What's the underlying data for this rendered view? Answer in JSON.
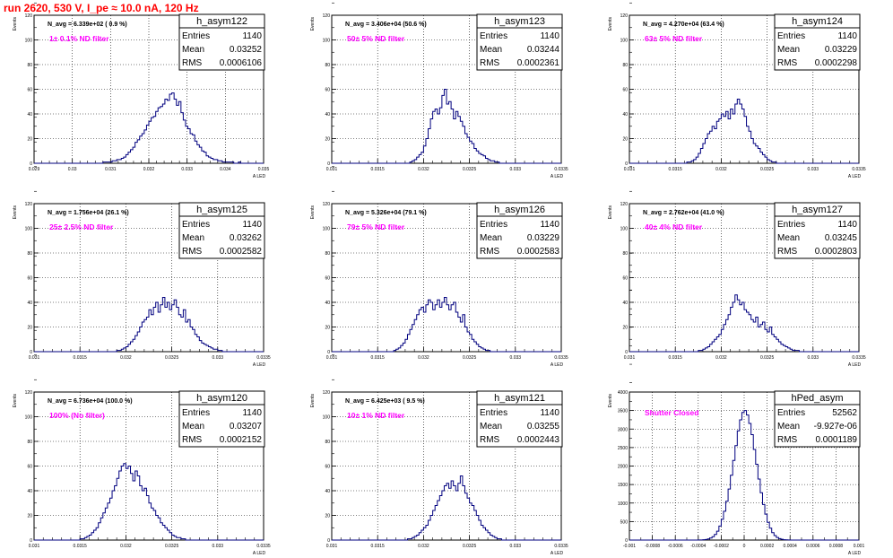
{
  "page_title": "run 2620,   530 V, I_pe ≈ 10.0 nA, 120 Hz",
  "style": {
    "hist_color": "#00007f",
    "annotation_color": "#ff00ff",
    "title_color": "#ff0000"
  },
  "chart_data": [
    {
      "type": "histogram",
      "name": "h_asym122",
      "title": "h_asym122",
      "stats": {
        "Entries": "1140",
        "Mean": "0.03252",
        "RMS": "0.0006106"
      },
      "navg_label": "N_avg = 6.339e+02 ( 0.9 %)",
      "filter_label": "1± 0.1% ND filter",
      "ylabel": "Events",
      "xlabel": "A_LED",
      "xlim": [
        0.029,
        0.035
      ],
      "ylim": [
        0,
        120
      ],
      "xticks": [
        "0.029",
        "0.03",
        "0.031",
        "0.032",
        "0.033",
        "0.034",
        "0.035"
      ],
      "yticks": [
        "0",
        "20",
        "40",
        "60",
        "80",
        "100",
        "120"
      ],
      "counts": [
        0,
        0,
        0,
        0,
        0,
        0,
        0,
        0,
        0,
        0,
        0,
        0,
        0,
        0,
        0,
        0,
        0,
        0,
        0,
        0,
        0,
        0,
        0,
        0,
        0,
        0,
        0,
        0,
        0,
        0,
        1,
        1,
        1,
        1,
        2,
        2,
        3,
        3,
        4,
        5,
        7,
        9,
        11,
        13,
        17,
        19,
        22,
        24,
        27,
        31,
        34,
        37,
        38,
        42,
        45,
        46,
        48,
        52,
        51,
        56,
        57,
        52,
        47,
        50,
        41,
        35,
        30,
        28,
        24,
        23,
        18,
        15,
        13,
        10,
        9,
        6,
        5,
        4,
        3,
        3,
        2,
        2,
        1,
        1,
        1,
        1,
        1,
        0,
        0,
        1,
        0,
        0,
        0,
        0,
        0,
        0,
        0,
        0,
        0,
        0
      ]
    },
    {
      "type": "histogram",
      "name": "h_asym123",
      "title": "h_asym123",
      "stats": {
        "Entries": "1140",
        "Mean": "0.03244",
        "RMS": "0.0002361"
      },
      "navg_label": "N_avg = 3.406e+04 (50.6 %)",
      "filter_label": "50± 5% ND filter",
      "ylabel": "Events",
      "xlabel": "A_LED",
      "xlim": [
        0.031,
        0.0335
      ],
      "ylim": [
        0,
        120
      ],
      "xticks": [
        "0.031",
        "0.0315",
        "0.032",
        "0.0325",
        "0.033",
        "0.0335"
      ],
      "yticks": [
        "0",
        "20",
        "40",
        "60",
        "80",
        "100",
        "120"
      ],
      "counts": [
        0,
        0,
        0,
        0,
        0,
        0,
        0,
        0,
        0,
        0,
        0,
        0,
        0,
        0,
        0,
        0,
        0,
        0,
        0,
        0,
        0,
        0,
        0,
        0,
        0,
        0,
        0,
        0,
        0,
        0,
        0,
        0,
        0,
        0,
        1,
        2,
        3,
        5,
        7,
        9,
        14,
        20,
        28,
        36,
        42,
        44,
        40,
        45,
        55,
        60,
        48,
        50,
        44,
        36,
        42,
        38,
        34,
        30,
        24,
        21,
        18,
        16,
        12,
        10,
        8,
        7,
        6,
        4,
        3,
        2,
        2,
        1,
        1,
        0,
        0,
        0,
        0,
        0,
        0,
        0,
        0,
        0,
        0,
        0,
        0,
        0,
        0,
        0,
        0,
        0,
        0,
        0,
        0,
        0,
        0,
        0,
        0,
        0,
        0,
        0
      ]
    },
    {
      "type": "histogram",
      "name": "h_asym124",
      "title": "h_asym124",
      "stats": {
        "Entries": "1140",
        "Mean": "0.03229",
        "RMS": "0.0002298"
      },
      "navg_label": "N_avg = 4.270e+04 (63.4 %)",
      "filter_label": "63± 5% ND filter",
      "ylabel": "Events",
      "xlabel": "A_LED",
      "xlim": [
        0.031,
        0.0335
      ],
      "ylim": [
        0,
        120
      ],
      "xticks": [
        "0.031",
        "0.0315",
        "0.032",
        "0.0325",
        "0.033",
        "0.0335"
      ],
      "yticks": [
        "0",
        "20",
        "40",
        "60",
        "80",
        "100",
        "120"
      ],
      "counts": [
        0,
        0,
        0,
        0,
        0,
        0,
        0,
        0,
        0,
        0,
        0,
        0,
        0,
        0,
        0,
        0,
        0,
        0,
        0,
        0,
        0,
        0,
        0,
        0,
        0,
        1,
        1,
        2,
        3,
        5,
        8,
        12,
        16,
        20,
        24,
        26,
        30,
        28,
        34,
        36,
        40,
        38,
        42,
        36,
        44,
        40,
        48,
        52,
        48,
        44,
        38,
        30,
        26,
        20,
        16,
        14,
        12,
        9,
        7,
        5,
        3,
        2,
        1,
        1,
        0,
        0,
        0,
        0,
        0,
        0,
        0,
        0,
        0,
        0,
        0,
        0,
        0,
        0,
        0,
        0,
        0,
        0,
        0,
        0,
        0,
        0,
        0,
        0,
        0,
        0,
        0,
        0,
        0,
        0,
        0,
        0,
        0,
        0,
        0,
        0
      ]
    },
    {
      "type": "histogram",
      "name": "h_asym125",
      "title": "h_asym125",
      "stats": {
        "Entries": "1140",
        "Mean": "0.03262",
        "RMS": "0.0002582"
      },
      "navg_label": "N_avg = 1.756e+04 (26.1 %)",
      "filter_label": "25± 2.5% ND filter",
      "ylabel": "Events",
      "xlabel": "A_LED",
      "xlim": [
        0.031,
        0.0335
      ],
      "ylim": [
        0,
        120
      ],
      "xticks": [
        "0.031",
        "0.0315",
        "0.032",
        "0.0325",
        "0.033",
        "0.0335"
      ],
      "yticks": [
        "0",
        "20",
        "40",
        "60",
        "80",
        "100",
        "120"
      ],
      "counts": [
        0,
        0,
        0,
        0,
        0,
        0,
        0,
        0,
        0,
        0,
        0,
        0,
        0,
        0,
        0,
        0,
        0,
        0,
        0,
        0,
        0,
        0,
        0,
        0,
        0,
        0,
        0,
        0,
        0,
        0,
        0,
        0,
        0,
        0,
        0,
        0,
        1,
        1,
        2,
        3,
        4,
        6,
        8,
        10,
        13,
        16,
        20,
        24,
        26,
        28,
        34,
        30,
        36,
        40,
        32,
        38,
        44,
        36,
        40,
        34,
        38,
        42,
        36,
        30,
        28,
        34,
        24,
        26,
        20,
        18,
        14,
        12,
        9,
        7,
        6,
        5,
        4,
        3,
        2,
        2,
        1,
        1,
        0,
        0,
        0,
        0,
        0,
        0,
        0,
        0,
        0,
        0,
        0,
        0,
        0,
        0,
        0,
        0,
        0,
        0
      ]
    },
    {
      "type": "histogram",
      "name": "h_asym126",
      "title": "h_asym126",
      "stats": {
        "Entries": "1140",
        "Mean": "0.03229",
        "RMS": "0.0002583"
      },
      "navg_label": "N_avg = 5.326e+04 (79.1 %)",
      "filter_label": "79± 5% ND filter",
      "ylabel": "Events",
      "xlabel": "A_LED",
      "xlim": [
        0.031,
        0.0335
      ],
      "ylim": [
        0,
        120
      ],
      "xticks": [
        "0.031",
        "0.0315",
        "0.032",
        "0.0325",
        "0.033",
        "0.0335"
      ],
      "yticks": [
        "0",
        "20",
        "40",
        "60",
        "80",
        "100",
        "120"
      ],
      "counts": [
        0,
        0,
        0,
        0,
        0,
        0,
        0,
        0,
        0,
        0,
        0,
        0,
        0,
        0,
        0,
        0,
        0,
        0,
        0,
        0,
        0,
        0,
        0,
        0,
        0,
        0,
        0,
        1,
        2,
        3,
        5,
        7,
        10,
        14,
        18,
        22,
        26,
        30,
        34,
        36,
        32,
        38,
        42,
        40,
        34,
        38,
        42,
        36,
        40,
        44,
        38,
        34,
        38,
        40,
        32,
        28,
        24,
        30,
        20,
        16,
        14,
        10,
        8,
        6,
        4,
        3,
        2,
        1,
        1,
        0,
        0,
        0,
        0,
        0,
        0,
        0,
        0,
        0,
        0,
        0,
        0,
        0,
        0,
        0,
        0,
        0,
        0,
        0,
        0,
        0,
        0,
        0,
        0,
        0,
        0,
        0,
        0,
        0,
        0,
        0
      ]
    },
    {
      "type": "histogram",
      "name": "h_asym127",
      "title": "h_asym127",
      "stats": {
        "Entries": "1140",
        "Mean": "0.03245",
        "RMS": "0.0002803"
      },
      "navg_label": "N_avg = 2.762e+04 (41.0 %)",
      "filter_label": "40± 4% ND filter",
      "ylabel": "Events",
      "xlabel": "A_LED",
      "xlim": [
        0.031,
        0.0335
      ],
      "ylim": [
        0,
        120
      ],
      "xticks": [
        "0.031",
        "0.0315",
        "0.032",
        "0.0325",
        "0.033",
        "0.0335"
      ],
      "yticks": [
        "0",
        "20",
        "40",
        "60",
        "80",
        "100",
        "120"
      ],
      "counts": [
        0,
        0,
        0,
        0,
        0,
        0,
        0,
        0,
        0,
        0,
        0,
        0,
        0,
        0,
        0,
        0,
        0,
        0,
        0,
        0,
        0,
        0,
        0,
        0,
        0,
        0,
        0,
        0,
        0,
        0,
        1,
        1,
        2,
        3,
        4,
        6,
        8,
        10,
        12,
        14,
        18,
        22,
        26,
        30,
        36,
        40,
        46,
        42,
        38,
        40,
        34,
        32,
        30,
        26,
        24,
        28,
        20,
        22,
        24,
        18,
        16,
        20,
        14,
        12,
        10,
        8,
        6,
        5,
        4,
        3,
        2,
        1,
        1,
        1,
        0,
        0,
        0,
        0,
        0,
        0,
        0,
        0,
        0,
        0,
        0,
        0,
        0,
        0,
        0,
        0,
        0,
        0,
        0,
        0,
        0,
        0,
        0,
        0,
        0,
        0
      ]
    },
    {
      "type": "histogram",
      "name": "h_asym120",
      "title": "h_asym120",
      "stats": {
        "Entries": "1140",
        "Mean": "0.03207",
        "RMS": "0.0002152"
      },
      "navg_label": "N_avg = 6.736e+04 (100.0 %)",
      "filter_label": "100% (No filter)",
      "ylabel": "Events",
      "xlabel": "A_LED",
      "xlim": [
        0.031,
        0.0335
      ],
      "ylim": [
        0,
        120
      ],
      "xticks": [
        "0.031",
        "0.0315",
        "0.032",
        "0.0325",
        "0.033",
        "0.0335"
      ],
      "yticks": [
        "0",
        "20",
        "40",
        "60",
        "80",
        "100",
        "120"
      ],
      "counts": [
        0,
        0,
        0,
        0,
        0,
        0,
        0,
        0,
        0,
        0,
        0,
        0,
        0,
        0,
        0,
        0,
        0,
        0,
        0,
        0,
        1,
        1,
        2,
        3,
        4,
        6,
        8,
        10,
        14,
        18,
        22,
        26,
        30,
        34,
        40,
        44,
        50,
        56,
        60,
        62,
        58,
        60,
        54,
        48,
        56,
        52,
        44,
        40,
        42,
        36,
        30,
        26,
        24,
        20,
        18,
        14,
        12,
        10,
        8,
        6,
        4,
        3,
        2,
        2,
        1,
        1,
        0,
        0,
        0,
        0,
        0,
        0,
        0,
        0,
        0,
        0,
        0,
        0,
        0,
        0,
        0,
        0,
        0,
        0,
        0,
        0,
        0,
        0,
        0,
        0,
        0,
        0,
        0,
        0,
        0,
        0,
        0,
        0,
        0,
        0
      ]
    },
    {
      "type": "histogram",
      "name": "h_asym121",
      "title": "h_asym121",
      "stats": {
        "Entries": "1140",
        "Mean": "0.03255",
        "RMS": "0.0002443"
      },
      "navg_label": "N_avg = 6.425e+03 ( 9.5 %)",
      "filter_label": "10± 1% ND filter",
      "ylabel": "Events",
      "xlabel": "A_LED",
      "xlim": [
        0.031,
        0.0335
      ],
      "ylim": [
        0,
        120
      ],
      "xticks": [
        "0.031",
        "0.0315",
        "0.032",
        "0.0325",
        "0.033",
        "0.0335"
      ],
      "yticks": [
        "0",
        "20",
        "40",
        "60",
        "80",
        "100",
        "120"
      ],
      "counts": [
        0,
        0,
        0,
        0,
        0,
        0,
        0,
        0,
        0,
        0,
        0,
        0,
        0,
        0,
        0,
        0,
        0,
        0,
        0,
        0,
        0,
        0,
        0,
        0,
        0,
        0,
        0,
        0,
        0,
        0,
        0,
        0,
        0,
        1,
        1,
        2,
        3,
        4,
        6,
        8,
        10,
        12,
        16,
        20,
        24,
        28,
        32,
        36,
        40,
        44,
        46,
        42,
        48,
        44,
        40,
        46,
        52,
        44,
        38,
        34,
        30,
        28,
        24,
        20,
        16,
        12,
        10,
        8,
        6,
        4,
        3,
        2,
        1,
        1,
        0,
        0,
        0,
        0,
        0,
        0,
        0,
        0,
        0,
        0,
        0,
        0,
        0,
        0,
        0,
        0,
        0,
        0,
        0,
        0,
        0,
        0,
        0,
        0,
        0,
        0
      ]
    },
    {
      "type": "histogram",
      "name": "hPed_asym",
      "title": "hPed_asym",
      "stats": {
        "Entries": "52562",
        "Mean": "-9.927e-06",
        "RMS": "0.0001189"
      },
      "navg_label": "",
      "filter_label": "Shutter Closed",
      "ylabel": "Events",
      "xlabel": "A_LED",
      "xlim": [
        -0.001,
        0.001
      ],
      "ylim": [
        0,
        4000
      ],
      "xticks": [
        "-0.001",
        "-0.0008",
        "-0.0006",
        "-0.0004",
        "-0.0002",
        "0",
        "0.0002",
        "0.0004",
        "0.0006",
        "0.0008",
        "0.001"
      ],
      "yticks": [
        "0",
        "500",
        "1000",
        "1500",
        "2000",
        "2500",
        "3000",
        "3500",
        "4000"
      ],
      "counts": [
        0,
        0,
        0,
        0,
        0,
        0,
        0,
        0,
        0,
        0,
        0,
        0,
        0,
        0,
        0,
        0,
        0,
        0,
        0,
        0,
        0,
        0,
        0,
        0,
        0,
        0,
        0,
        0,
        0,
        0,
        2,
        4,
        8,
        15,
        30,
        55,
        90,
        150,
        240,
        380,
        560,
        780,
        1050,
        1380,
        1750,
        2150,
        2550,
        2950,
        3250,
        3450,
        3500,
        3380,
        3150,
        2850,
        2450,
        2050,
        1650,
        1280,
        960,
        700,
        480,
        320,
        200,
        120,
        70,
        40,
        20,
        10,
        5,
        2,
        1,
        0,
        0,
        0,
        0,
        0,
        0,
        0,
        0,
        0,
        0,
        0,
        0,
        0,
        0,
        0,
        0,
        0,
        0,
        0,
        0,
        0,
        0,
        0,
        0,
        0,
        0,
        0,
        0,
        0
      ]
    }
  ]
}
